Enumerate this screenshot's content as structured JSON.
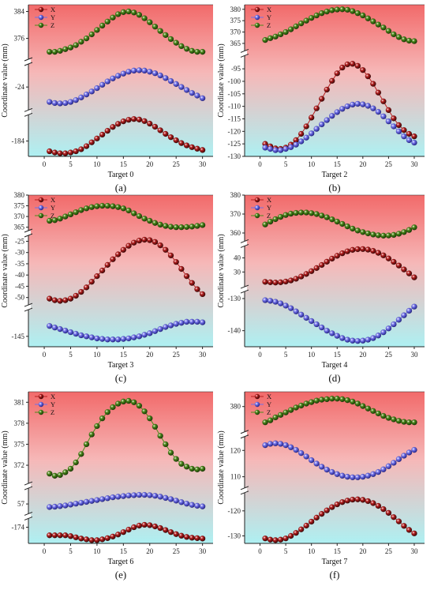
{
  "figure": {
    "panels": [
      {
        "label": "(a)"
      },
      {
        "label": "(b)"
      },
      {
        "label": "(c)"
      },
      {
        "label": "(d)"
      },
      {
        "label": "(e)"
      },
      {
        "label": "(f)"
      }
    ]
  },
  "colors": {
    "X": "#b82020",
    "Y": "#7070e8",
    "Z": "#4e8c1c",
    "bg_top": "#f26a6a",
    "bg_bottom": "#aef0f2"
  },
  "chart_data": [
    {
      "type": "line",
      "xlabel": "Target 0",
      "ylabel": "Coordinate value (mm)",
      "xlim": [
        -3,
        32
      ],
      "xticks": [
        0,
        5,
        10,
        15,
        20,
        25,
        30
      ],
      "legend": "top-left",
      "grid": false,
      "axis_breaks": true,
      "yticks": [
        "384",
        "376",
        "-24",
        "-184"
      ],
      "x": [
        1,
        2,
        3,
        4,
        5,
        6,
        7,
        8,
        9,
        10,
        11,
        12,
        13,
        14,
        15,
        16,
        17,
        18,
        19,
        20,
        21,
        22,
        23,
        24,
        25,
        26,
        27,
        28,
        29,
        30
      ],
      "series": [
        {
          "name": "X",
          "values": [
            -188.0,
            -188.5,
            -188.8,
            -188.8,
            -188.5,
            -188.0,
            -187.2,
            -186.0,
            -184.5,
            -183.0,
            -181.5,
            -180.0,
            -178.5,
            -177.3,
            -176.3,
            -175.7,
            -175.4,
            -175.6,
            -176.2,
            -177.2,
            -178.4,
            -179.8,
            -181.2,
            -182.5,
            -183.7,
            -184.8,
            -185.7,
            -186.4,
            -187.0,
            -187.5
          ]
        },
        {
          "name": "Y",
          "values": [
            -28.0,
            -28.3,
            -28.4,
            -28.3,
            -28.0,
            -27.5,
            -26.8,
            -26.0,
            -25.2,
            -24.3,
            -23.4,
            -22.5,
            -21.7,
            -21.0,
            -20.4,
            -19.9,
            -19.6,
            -19.5,
            -19.6,
            -19.9,
            -20.3,
            -20.9,
            -21.6,
            -22.4,
            -23.2,
            -24.0,
            -24.8,
            -25.6,
            -26.3,
            -27.0
          ]
        },
        {
          "name": "Z",
          "values": [
            372.0,
            372.0,
            372.3,
            372.8,
            373.3,
            374.0,
            375.0,
            376.0,
            377.2,
            378.5,
            379.8,
            381.0,
            382.2,
            383.2,
            383.8,
            384.0,
            383.7,
            383.0,
            382.0,
            380.8,
            379.5,
            378.2,
            377.0,
            375.8,
            374.7,
            373.7,
            372.9,
            372.3,
            372.0,
            372.0
          ]
        }
      ]
    },
    {
      "type": "line",
      "xlabel": "Target 2",
      "ylabel": "Coordinate value (mm)",
      "xlim": [
        -3,
        32
      ],
      "xticks": [
        0,
        5,
        10,
        15,
        20,
        25,
        30
      ],
      "legend": "top-left",
      "grid": false,
      "axis_breaks": true,
      "yticks": [
        "380",
        "375",
        "370",
        "365",
        "-95",
        "-100",
        "-105",
        "-110",
        "-115",
        "-120",
        "-125",
        "-130"
      ],
      "x": [
        1,
        2,
        3,
        4,
        5,
        6,
        7,
        8,
        9,
        10,
        11,
        12,
        13,
        14,
        15,
        16,
        17,
        18,
        19,
        20,
        21,
        22,
        23,
        24,
        25,
        26,
        27,
        28,
        29,
        30
      ],
      "series": [
        {
          "name": "X",
          "values": [
            -125.0,
            -126.0,
            -126.8,
            -127.0,
            -126.5,
            -125.3,
            -123.5,
            -121.0,
            -118.0,
            -114.5,
            -110.8,
            -107.0,
            -103.3,
            -99.8,
            -96.8,
            -94.5,
            -93.2,
            -93.0,
            -93.8,
            -95.5,
            -98.0,
            -101.0,
            -104.5,
            -108.0,
            -111.5,
            -114.8,
            -117.5,
            -119.5,
            -121.0,
            -122.0
          ]
        },
        {
          "name": "Y",
          "values": [
            -126.5,
            -127.0,
            -127.5,
            -127.5,
            -127.0,
            -126.3,
            -125.3,
            -124.0,
            -122.5,
            -120.8,
            -119.0,
            -117.2,
            -115.5,
            -113.8,
            -112.3,
            -111.0,
            -110.0,
            -109.3,
            -109.0,
            -109.2,
            -109.8,
            -110.8,
            -112.2,
            -114.0,
            -116.0,
            -118.0,
            -120.0,
            -122.0,
            -123.5,
            -124.5
          ]
        },
        {
          "name": "Z",
          "values": [
            366.5,
            367.3,
            368.0,
            369.0,
            370.0,
            371.2,
            372.5,
            373.8,
            375.0,
            376.2,
            377.3,
            378.3,
            379.0,
            379.6,
            379.9,
            380.0,
            379.8,
            379.2,
            378.3,
            377.3,
            376.0,
            374.7,
            373.3,
            372.0,
            370.5,
            369.0,
            367.8,
            366.8,
            366.2,
            366.0
          ]
        }
      ]
    },
    {
      "type": "line",
      "xlabel": "Target 3",
      "ylabel": "Coordinate value (mm)",
      "xlim": [
        -3,
        32
      ],
      "xticks": [
        0,
        5,
        10,
        15,
        20,
        25,
        30
      ],
      "legend": "top-left",
      "grid": false,
      "axis_breaks": true,
      "yticks": [
        "380",
        "375",
        "370",
        "365",
        "-25",
        "-30",
        "-35",
        "-40",
        "-45",
        "-50",
        "-145"
      ],
      "x": [
        1,
        2,
        3,
        4,
        5,
        6,
        7,
        8,
        9,
        10,
        11,
        12,
        13,
        14,
        15,
        16,
        17,
        18,
        19,
        20,
        21,
        22,
        23,
        24,
        25,
        26,
        27,
        28,
        29,
        30
      ],
      "series": [
        {
          "name": "X",
          "values": [
            -50.5,
            -51.2,
            -51.5,
            -51.2,
            -50.5,
            -49.2,
            -47.5,
            -45.5,
            -43.0,
            -40.5,
            -38.0,
            -35.5,
            -33.0,
            -30.8,
            -28.8,
            -27.0,
            -25.6,
            -24.7,
            -24.3,
            -24.5,
            -25.3,
            -26.8,
            -28.8,
            -31.3,
            -34.2,
            -37.3,
            -40.5,
            -43.5,
            -46.3,
            -48.5
          ]
        },
        {
          "name": "Y",
          "values": [
            -143.0,
            -143.3,
            -143.6,
            -143.9,
            -144.2,
            -144.5,
            -144.8,
            -145.0,
            -145.2,
            -145.4,
            -145.5,
            -145.6,
            -145.6,
            -145.6,
            -145.5,
            -145.4,
            -145.2,
            -145.0,
            -144.7,
            -144.4,
            -144.0,
            -143.6,
            -143.2,
            -142.9,
            -142.6,
            -142.4,
            -142.2,
            -142.2,
            -142.2,
            -142.3
          ]
        },
        {
          "name": "Z",
          "values": [
            368.0,
            368.3,
            369.0,
            370.0,
            371.0,
            372.0,
            373.0,
            373.8,
            374.4,
            374.8,
            375.0,
            375.0,
            374.8,
            374.4,
            373.8,
            372.8,
            371.5,
            370.2,
            369.0,
            368.0,
            367.0,
            366.2,
            365.6,
            365.2,
            365.0,
            365.0,
            365.1,
            365.3,
            365.6,
            366.0
          ]
        }
      ]
    },
    {
      "type": "line",
      "xlabel": "Target 4",
      "ylabel": "Coordinate value (mm)",
      "xlim": [
        -3,
        32
      ],
      "xticks": [
        0,
        5,
        10,
        15,
        20,
        25,
        30
      ],
      "legend": "top-left",
      "grid": false,
      "axis_breaks": true,
      "yticks": [
        "380",
        "370",
        "360",
        "40",
        "30",
        "-130",
        "-140"
      ],
      "x": [
        1,
        2,
        3,
        4,
        5,
        6,
        7,
        8,
        9,
        10,
        11,
        12,
        13,
        14,
        15,
        16,
        17,
        18,
        19,
        20,
        21,
        22,
        23,
        24,
        25,
        26,
        27,
        28,
        29,
        30
      ],
      "series": [
        {
          "name": "X",
          "values": [
            23.0,
            22.7,
            22.5,
            22.7,
            23.2,
            24.0,
            25.2,
            26.8,
            28.6,
            30.6,
            32.8,
            35.0,
            37.3,
            39.5,
            41.5,
            43.3,
            44.7,
            45.7,
            46.2,
            46.3,
            45.9,
            45.0,
            43.6,
            41.8,
            39.6,
            37.2,
            34.6,
            31.8,
            29.0,
            26.2
          ]
        },
        {
          "name": "Y",
          "values": [
            -130.5,
            -130.7,
            -131.0,
            -131.5,
            -132.2,
            -133.0,
            -134.0,
            -135.0,
            -136.0,
            -137.0,
            -138.0,
            -139.0,
            -140.0,
            -140.8,
            -141.6,
            -142.3,
            -142.8,
            -143.1,
            -143.2,
            -143.1,
            -142.8,
            -142.3,
            -141.5,
            -140.5,
            -139.3,
            -138.0,
            -136.6,
            -135.2,
            -133.8,
            -132.5
          ]
        },
        {
          "name": "Z",
          "values": [
            364.5,
            366.0,
            367.3,
            368.5,
            369.5,
            370.2,
            370.6,
            370.8,
            370.8,
            370.5,
            370.0,
            369.2,
            368.3,
            367.2,
            366.0,
            364.8,
            363.5,
            362.3,
            361.3,
            360.5,
            359.8,
            359.2,
            358.8,
            358.6,
            358.7,
            359.0,
            359.6,
            360.5,
            361.6,
            363.0
          ]
        }
      ]
    },
    {
      "type": "line",
      "xlabel": "Target 6",
      "ylabel": "Coordinate value (mm)",
      "xlim": [
        -3,
        32
      ],
      "xticks": [
        0,
        5,
        10,
        15,
        20,
        25,
        30
      ],
      "legend": "top-left",
      "grid": false,
      "axis_breaks": true,
      "yticks": [
        "381",
        "378",
        "375",
        "372",
        "57",
        "-174"
      ],
      "x": [
        1,
        2,
        3,
        4,
        5,
        6,
        7,
        8,
        9,
        10,
        11,
        12,
        13,
        14,
        15,
        16,
        17,
        18,
        19,
        20,
        21,
        22,
        23,
        24,
        25,
        26,
        27,
        28,
        29,
        30
      ],
      "series": [
        {
          "name": "X",
          "values": [
            -176.0,
            -176.0,
            -176.0,
            -176.0,
            -176.2,
            -176.5,
            -176.8,
            -177.0,
            -177.2,
            -177.2,
            -177.0,
            -176.7,
            -176.3,
            -175.8,
            -175.2,
            -174.6,
            -174.0,
            -173.6,
            -173.4,
            -173.5,
            -173.8,
            -174.2,
            -174.7,
            -175.2,
            -175.7,
            -176.1,
            -176.4,
            -176.6,
            -176.7,
            -176.8
          ]
        },
        {
          "name": "Y",
          "values": [
            56.0,
            56.1,
            56.3,
            56.5,
            56.8,
            57.1,
            57.4,
            57.7,
            58.0,
            58.3,
            58.6,
            58.9,
            59.2,
            59.4,
            59.6,
            59.8,
            59.9,
            60.0,
            60.0,
            59.9,
            59.7,
            59.4,
            59.0,
            58.6,
            58.1,
            57.6,
            57.1,
            56.7,
            56.4,
            56.2
          ]
        },
        {
          "name": "Z",
          "values": [
            370.8,
            370.5,
            370.6,
            371.0,
            371.5,
            372.4,
            373.6,
            375.0,
            376.4,
            377.6,
            378.7,
            379.6,
            380.3,
            380.8,
            381.1,
            381.2,
            381.0,
            380.5,
            379.7,
            378.7,
            377.5,
            376.2,
            375.0,
            373.8,
            372.9,
            372.2,
            371.8,
            371.5,
            371.4,
            371.5
          ]
        }
      ]
    },
    {
      "type": "line",
      "xlabel": "Target 7",
      "ylabel": "Coordinate value (mm)",
      "xlim": [
        -3,
        32
      ],
      "xticks": [
        0,
        5,
        10,
        15,
        20,
        25,
        30
      ],
      "legend": "top-left",
      "grid": false,
      "axis_breaks": true,
      "yticks": [
        "380",
        "120",
        "110",
        "-120",
        "-130"
      ],
      "x": [
        1,
        2,
        3,
        4,
        5,
        6,
        7,
        8,
        9,
        10,
        11,
        12,
        13,
        14,
        15,
        16,
        17,
        18,
        19,
        20,
        21,
        22,
        23,
        24,
        25,
        26,
        27,
        28,
        29,
        30
      ],
      "series": [
        {
          "name": "X",
          "values": [
            -131.0,
            -131.5,
            -131.7,
            -131.5,
            -131.0,
            -130.0,
            -128.8,
            -127.4,
            -125.9,
            -124.3,
            -122.7,
            -121.2,
            -119.8,
            -118.5,
            -117.4,
            -116.5,
            -115.9,
            -115.5,
            -115.4,
            -115.6,
            -116.1,
            -116.9,
            -118.0,
            -119.3,
            -120.8,
            -122.5,
            -124.2,
            -126.0,
            -127.6,
            -129.0
          ]
        },
        {
          "name": "Y",
          "values": [
            122.0,
            122.5,
            122.7,
            122.5,
            122.0,
            121.2,
            120.2,
            119.0,
            117.7,
            116.3,
            115.0,
            113.8,
            112.7,
            111.8,
            111.0,
            110.4,
            110.0,
            109.8,
            109.8,
            110.0,
            110.4,
            111.0,
            111.8,
            112.8,
            114.0,
            115.3,
            116.7,
            118.0,
            119.2,
            120.2
          ]
        },
        {
          "name": "Z",
          "values": [
            376.8,
            377.2,
            377.8,
            378.3,
            378.8,
            379.3,
            379.8,
            380.2,
            380.6,
            380.9,
            381.2,
            381.4,
            381.5,
            381.6,
            381.6,
            381.5,
            381.3,
            381.0,
            380.6,
            380.1,
            379.6,
            379.1,
            378.6,
            378.1,
            377.7,
            377.4,
            377.1,
            376.9,
            376.8,
            376.8
          ]
        }
      ]
    }
  ]
}
